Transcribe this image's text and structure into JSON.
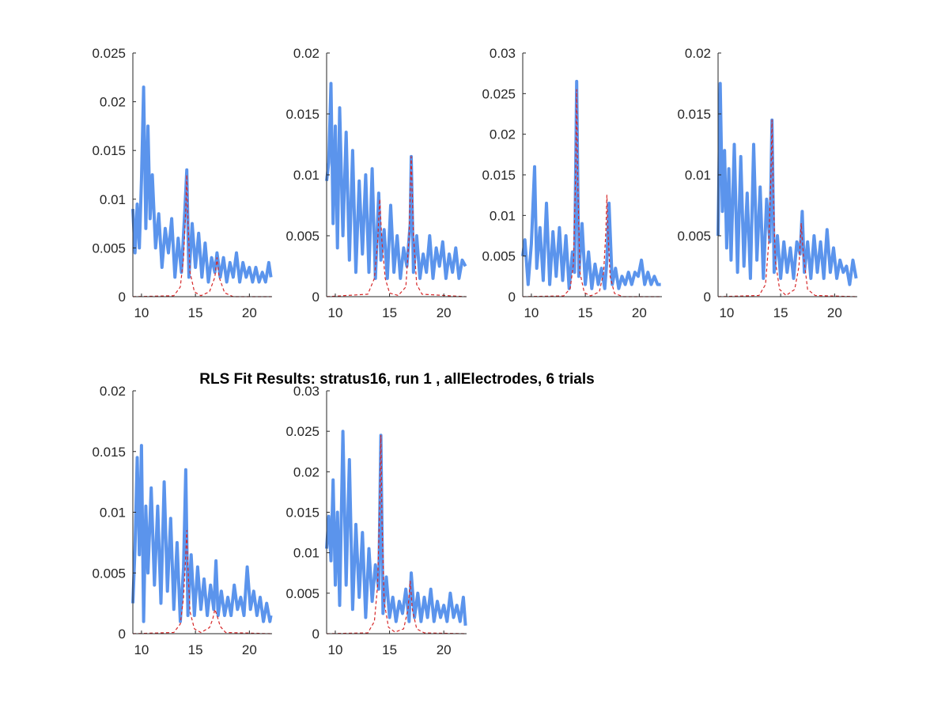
{
  "figure": {
    "title": "RLS Fit Results: stratus16, run 1 , allElectrodes, 6 trials"
  },
  "colors": {
    "measured": "#5b94ec",
    "fit": "#d62728",
    "axis": "#262626"
  },
  "chart_data": [
    {
      "type": "line",
      "xlim": [
        9.2,
        22.1
      ],
      "ylim": [
        0,
        0.025
      ],
      "xticks": [
        "10",
        "15",
        "20"
      ],
      "xtick_values": [
        10,
        15,
        20
      ],
      "yticks": [
        "0",
        "0.005",
        "0.01",
        "0.015",
        "0.02",
        "0.025"
      ],
      "ytick_values": [
        0,
        0.005,
        0.01,
        0.015,
        0.02,
        0.025
      ],
      "series": [
        {
          "role": "measured",
          "x": [
            9.2,
            9.4,
            9.6,
            9.8,
            10.0,
            10.2,
            10.4,
            10.6,
            10.8,
            11.0,
            11.3,
            11.6,
            11.9,
            12.2,
            12.5,
            12.8,
            13.1,
            13.4,
            13.7,
            14.0,
            14.2,
            14.4,
            14.7,
            15.0,
            15.3,
            15.6,
            15.9,
            16.2,
            16.5,
            16.8,
            17.0,
            17.3,
            17.6,
            17.9,
            18.2,
            18.5,
            18.8,
            19.1,
            19.4,
            19.7,
            20.0,
            20.3,
            20.6,
            20.9,
            21.2,
            21.5,
            21.8,
            22.0
          ],
          "y": [
            0.009,
            0.0045,
            0.0095,
            0.005,
            0.012,
            0.0215,
            0.007,
            0.0175,
            0.008,
            0.0125,
            0.005,
            0.0085,
            0.003,
            0.007,
            0.0045,
            0.008,
            0.002,
            0.006,
            0.0025,
            0.0085,
            0.013,
            0.002,
            0.0075,
            0.003,
            0.0065,
            0.002,
            0.0055,
            0.0015,
            0.004,
            0.0025,
            0.0045,
            0.002,
            0.004,
            0.0015,
            0.0035,
            0.002,
            0.0045,
            0.0015,
            0.0035,
            0.002,
            0.003,
            0.0015,
            0.003,
            0.0015,
            0.0025,
            0.0015,
            0.0035,
            0.002
          ]
        },
        {
          "role": "fit",
          "x": [
            9.2,
            13.0,
            13.6,
            13.9,
            14.1,
            14.2,
            14.3,
            14.5,
            14.9,
            15.5,
            16.3,
            16.8,
            17.0,
            17.2,
            17.7,
            18.5,
            22.0
          ],
          "y": [
            0,
            0.0001,
            0.001,
            0.004,
            0.009,
            0.0125,
            0.008,
            0.0025,
            0.0005,
            0.0001,
            0.0005,
            0.002,
            0.004,
            0.002,
            0.0004,
            0,
            0
          ]
        }
      ]
    },
    {
      "type": "line",
      "xlim": [
        9.2,
        22.1
      ],
      "ylim": [
        0,
        0.02
      ],
      "xticks": [
        "10",
        "15",
        "20"
      ],
      "xtick_values": [
        10,
        15,
        20
      ],
      "yticks": [
        "0",
        "0.005",
        "0.01",
        "0.015",
        "0.02"
      ],
      "ytick_values": [
        0,
        0.005,
        0.01,
        0.015,
        0.02
      ],
      "series": [
        {
          "role": "measured",
          "x": [
            9.2,
            9.4,
            9.6,
            9.8,
            10.0,
            10.2,
            10.4,
            10.7,
            11.0,
            11.3,
            11.6,
            11.9,
            12.2,
            12.5,
            12.8,
            13.1,
            13.4,
            13.7,
            14.0,
            14.2,
            14.5,
            14.8,
            15.1,
            15.4,
            15.7,
            16.0,
            16.3,
            16.6,
            16.9,
            17.0,
            17.2,
            17.5,
            17.8,
            18.1,
            18.4,
            18.7,
            19.0,
            19.3,
            19.6,
            19.9,
            20.2,
            20.5,
            20.8,
            21.1,
            21.4,
            21.7,
            22.0
          ],
          "y": [
            0.0095,
            0.011,
            0.0175,
            0.006,
            0.014,
            0.004,
            0.0155,
            0.005,
            0.0135,
            0.003,
            0.012,
            0.002,
            0.0095,
            0.0035,
            0.01,
            0.002,
            0.0105,
            0.0015,
            0.0085,
            0.003,
            0.0055,
            0.0015,
            0.0075,
            0.002,
            0.005,
            0.0015,
            0.004,
            0.0025,
            0.006,
            0.0115,
            0.002,
            0.005,
            0.0015,
            0.0035,
            0.002,
            0.005,
            0.0015,
            0.004,
            0.0025,
            0.0045,
            0.0015,
            0.0035,
            0.002,
            0.004,
            0.0015,
            0.003,
            0.0025
          ]
        },
        {
          "role": "fit",
          "x": [
            9.2,
            13.0,
            13.6,
            13.9,
            14.1,
            14.3,
            14.6,
            15.0,
            15.8,
            16.5,
            16.8,
            17.0,
            17.2,
            17.5,
            18.0,
            22.0
          ],
          "y": [
            0,
            0.0002,
            0.0015,
            0.0045,
            0.008,
            0.0045,
            0.0015,
            0.0003,
            0.0001,
            0.0008,
            0.005,
            0.0115,
            0.005,
            0.001,
            0.0002,
            0
          ]
        }
      ]
    },
    {
      "type": "line",
      "xlim": [
        9.2,
        22.1
      ],
      "ylim": [
        0,
        0.03
      ],
      "xticks": [
        "10",
        "15",
        "20"
      ],
      "xtick_values": [
        10,
        15,
        20
      ],
      "yticks": [
        "0",
        "0.005",
        "0.01",
        "0.015",
        "0.02",
        "0.025",
        "0.03"
      ],
      "ytick_values": [
        0,
        0.005,
        0.01,
        0.015,
        0.02,
        0.025,
        0.03
      ],
      "series": [
        {
          "role": "measured",
          "x": [
            9.2,
            9.4,
            9.7,
            10.0,
            10.3,
            10.5,
            10.8,
            11.1,
            11.4,
            11.7,
            12.0,
            12.3,
            12.6,
            12.9,
            13.2,
            13.5,
            13.8,
            14.0,
            14.2,
            14.4,
            14.7,
            15.0,
            15.3,
            15.6,
            15.9,
            16.2,
            16.5,
            16.8,
            17.0,
            17.2,
            17.5,
            17.8,
            18.1,
            18.4,
            18.7,
            19.0,
            19.3,
            19.6,
            19.9,
            20.2,
            20.5,
            20.8,
            21.1,
            21.4,
            21.7,
            22.0
          ],
          "y": [
            0.005,
            0.007,
            0.0015,
            0.0065,
            0.016,
            0.0035,
            0.0085,
            0.002,
            0.0115,
            0.0015,
            0.008,
            0.0025,
            0.0085,
            0.002,
            0.0075,
            0.001,
            0.0055,
            0.003,
            0.0265,
            0.0025,
            0.009,
            0.0015,
            0.0055,
            0.001,
            0.004,
            0.0015,
            0.0035,
            0.001,
            0.0045,
            0.0115,
            0.0015,
            0.0035,
            0.001,
            0.0025,
            0.0015,
            0.003,
            0.0015,
            0.003,
            0.0025,
            0.0045,
            0.0015,
            0.003,
            0.0015,
            0.0025,
            0.0015,
            0.0015
          ]
        },
        {
          "role": "fit",
          "x": [
            9.2,
            13.0,
            13.6,
            13.9,
            14.1,
            14.2,
            14.3,
            14.5,
            14.9,
            15.5,
            16.3,
            16.7,
            16.9,
            17.0,
            17.1,
            17.3,
            17.7,
            18.5,
            22.0
          ],
          "y": [
            0,
            0.0001,
            0.001,
            0.004,
            0.015,
            0.0255,
            0.014,
            0.003,
            0.0005,
            0.0001,
            0.0006,
            0.003,
            0.008,
            0.0125,
            0.008,
            0.0025,
            0.0004,
            0,
            0
          ]
        }
      ]
    },
    {
      "type": "line",
      "xlim": [
        9.2,
        22.1
      ],
      "ylim": [
        0,
        0.02
      ],
      "xticks": [
        "10",
        "15",
        "20"
      ],
      "xtick_values": [
        10,
        15,
        20
      ],
      "yticks": [
        "0",
        "0.005",
        "0.01",
        "0.015",
        "0.02"
      ],
      "ytick_values": [
        0,
        0.005,
        0.01,
        0.015,
        0.02
      ],
      "series": [
        {
          "role": "measured",
          "x": [
            9.2,
            9.4,
            9.6,
            9.8,
            10.0,
            10.2,
            10.4,
            10.7,
            11.0,
            11.3,
            11.6,
            11.9,
            12.2,
            12.5,
            12.8,
            13.1,
            13.4,
            13.7,
            14.0,
            14.2,
            14.4,
            14.7,
            15.0,
            15.3,
            15.6,
            15.9,
            16.2,
            16.5,
            16.8,
            17.0,
            17.2,
            17.5,
            17.8,
            18.1,
            18.4,
            18.7,
            19.0,
            19.3,
            19.6,
            19.9,
            20.2,
            20.5,
            20.8,
            21.1,
            21.4,
            21.7,
            22.0
          ],
          "y": [
            0.005,
            0.0175,
            0.007,
            0.012,
            0.004,
            0.0105,
            0.003,
            0.0125,
            0.002,
            0.0115,
            0.0025,
            0.0085,
            0.0015,
            0.0125,
            0.003,
            0.009,
            0.0015,
            0.008,
            0.0045,
            0.0145,
            0.002,
            0.005,
            0.0015,
            0.0045,
            0.002,
            0.004,
            0.0015,
            0.0045,
            0.0035,
            0.007,
            0.002,
            0.0045,
            0.0015,
            0.005,
            0.002,
            0.0045,
            0.0015,
            0.0055,
            0.002,
            0.004,
            0.0015,
            0.003,
            0.002,
            0.0025,
            0.001,
            0.003,
            0.0015
          ]
        },
        {
          "role": "fit",
          "x": [
            9.2,
            13.0,
            13.6,
            13.9,
            14.1,
            14.2,
            14.3,
            14.5,
            14.9,
            15.5,
            16.3,
            16.7,
            16.9,
            17.1,
            17.5,
            18.2,
            22.0
          ],
          "y": [
            0,
            0.0001,
            0.001,
            0.0045,
            0.01,
            0.0145,
            0.009,
            0.003,
            0.0006,
            0.0001,
            0.0006,
            0.0025,
            0.006,
            0.0035,
            0.0006,
            0.0001,
            0
          ]
        }
      ]
    },
    {
      "type": "line",
      "xlim": [
        9.2,
        22.1
      ],
      "ylim": [
        0,
        0.02
      ],
      "xticks": [
        "10",
        "15",
        "20"
      ],
      "xtick_values": [
        10,
        15,
        20
      ],
      "yticks": [
        "0",
        "0.005",
        "0.01",
        "0.015",
        "0.02"
      ],
      "ytick_values": [
        0,
        0.005,
        0.01,
        0.015,
        0.02
      ],
      "series": [
        {
          "role": "measured",
          "x": [
            9.2,
            9.4,
            9.6,
            9.8,
            10.0,
            10.2,
            10.4,
            10.6,
            10.9,
            11.2,
            11.5,
            11.8,
            12.1,
            12.4,
            12.7,
            13.0,
            13.3,
            13.6,
            13.9,
            14.1,
            14.3,
            14.6,
            14.9,
            15.2,
            15.5,
            15.8,
            16.1,
            16.4,
            16.7,
            16.9,
            17.1,
            17.4,
            17.7,
            18.0,
            18.3,
            18.6,
            18.9,
            19.2,
            19.5,
            19.8,
            20.1,
            20.4,
            20.7,
            21.0,
            21.3,
            21.6,
            21.9,
            22.0
          ],
          "y": [
            0.0025,
            0.007,
            0.0145,
            0.0065,
            0.0155,
            0.001,
            0.0105,
            0.005,
            0.012,
            0.004,
            0.0105,
            0.0025,
            0.0125,
            0.0035,
            0.0095,
            0.002,
            0.0075,
            0.001,
            0.0055,
            0.0135,
            0.0015,
            0.0065,
            0.0015,
            0.0055,
            0.002,
            0.0045,
            0.0015,
            0.004,
            0.002,
            0.006,
            0.0015,
            0.0035,
            0.0015,
            0.003,
            0.0015,
            0.004,
            0.002,
            0.003,
            0.0015,
            0.0055,
            0.002,
            0.0035,
            0.0015,
            0.003,
            0.001,
            0.0025,
            0.001,
            0.0015
          ]
        },
        {
          "role": "fit",
          "x": [
            9.2,
            13.0,
            13.6,
            13.9,
            14.1,
            14.2,
            14.3,
            14.5,
            14.9,
            15.5,
            16.3,
            16.6,
            16.8,
            17.0,
            17.3,
            17.8,
            22.0
          ],
          "y": [
            0,
            0.0001,
            0.0008,
            0.003,
            0.0065,
            0.0085,
            0.0055,
            0.0018,
            0.0004,
            0.0001,
            0.0005,
            0.0012,
            0.002,
            0.0015,
            0.0006,
            0.0001,
            0
          ]
        }
      ]
    },
    {
      "type": "line",
      "xlim": [
        9.2,
        22.1
      ],
      "ylim": [
        0,
        0.03
      ],
      "xticks": [
        "10",
        "15",
        "20"
      ],
      "xtick_values": [
        10,
        15,
        20
      ],
      "yticks": [
        "0",
        "0.005",
        "0.01",
        "0.015",
        "0.02",
        "0.025",
        "0.03"
      ],
      "ytick_values": [
        0,
        0.005,
        0.01,
        0.015,
        0.02,
        0.025,
        0.03
      ],
      "series": [
        {
          "role": "measured",
          "x": [
            9.2,
            9.4,
            9.6,
            9.8,
            10.0,
            10.2,
            10.4,
            10.7,
            11.0,
            11.3,
            11.6,
            11.9,
            12.2,
            12.5,
            12.8,
            13.1,
            13.4,
            13.7,
            14.0,
            14.2,
            14.4,
            14.7,
            15.0,
            15.3,
            15.6,
            15.9,
            16.2,
            16.5,
            16.8,
            17.0,
            17.3,
            17.6,
            17.9,
            18.2,
            18.5,
            18.8,
            19.1,
            19.4,
            19.7,
            20.0,
            20.3,
            20.6,
            20.9,
            21.2,
            21.5,
            21.8,
            22.0
          ],
          "y": [
            0.0105,
            0.0145,
            0.009,
            0.019,
            0.006,
            0.015,
            0.0035,
            0.025,
            0.006,
            0.0215,
            0.003,
            0.0135,
            0.0045,
            0.0125,
            0.002,
            0.0105,
            0.004,
            0.0085,
            0.0055,
            0.0245,
            0.0025,
            0.007,
            0.002,
            0.0045,
            0.0015,
            0.004,
            0.0025,
            0.0055,
            0.0015,
            0.0075,
            0.002,
            0.005,
            0.0015,
            0.0045,
            0.002,
            0.0055,
            0.0015,
            0.004,
            0.002,
            0.0035,
            0.0015,
            0.005,
            0.002,
            0.0035,
            0.0015,
            0.0045,
            0.001
          ]
        },
        {
          "role": "fit",
          "x": [
            9.2,
            13.0,
            13.6,
            13.9,
            14.1,
            14.2,
            14.3,
            14.5,
            14.9,
            15.5,
            16.3,
            16.7,
            16.9,
            17.1,
            17.5,
            18.2,
            22.0
          ],
          "y": [
            0,
            0.0001,
            0.0015,
            0.006,
            0.016,
            0.0245,
            0.014,
            0.004,
            0.0008,
            0.0002,
            0.0006,
            0.003,
            0.0065,
            0.003,
            0.0006,
            0.0001,
            0
          ]
        }
      ]
    }
  ]
}
